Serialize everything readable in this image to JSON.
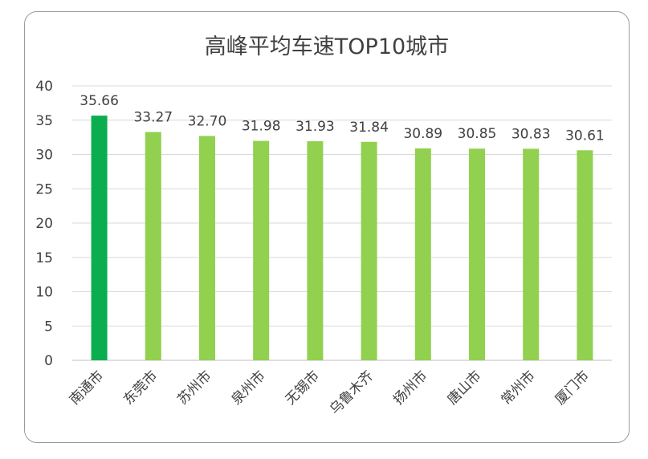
{
  "chart_data": {
    "type": "bar",
    "title": "高峰平均车速TOP10城市",
    "categories": [
      "南通市",
      "东莞市",
      "苏州市",
      "泉州市",
      "无锡市",
      "乌鲁木齐",
      "扬州市",
      "唐山市",
      "常州市",
      "厦门市"
    ],
    "values": [
      35.66,
      33.27,
      32.7,
      31.98,
      31.93,
      31.84,
      30.89,
      30.85,
      30.83,
      30.61
    ],
    "value_labels": [
      "35.66",
      "33.27",
      "32.70",
      "31.98",
      "31.93",
      "31.84",
      "30.89",
      "30.85",
      "30.83",
      "30.61"
    ],
    "y_ticks": [
      0,
      5,
      10,
      15,
      20,
      25,
      30,
      35,
      40
    ],
    "ylim": [
      0,
      40
    ],
    "grid": true,
    "legend": "none",
    "colors": {
      "highlight": "#0aae4e",
      "bar": "#92d050",
      "grid": "#d9d9d9",
      "text": "#404040"
    }
  }
}
